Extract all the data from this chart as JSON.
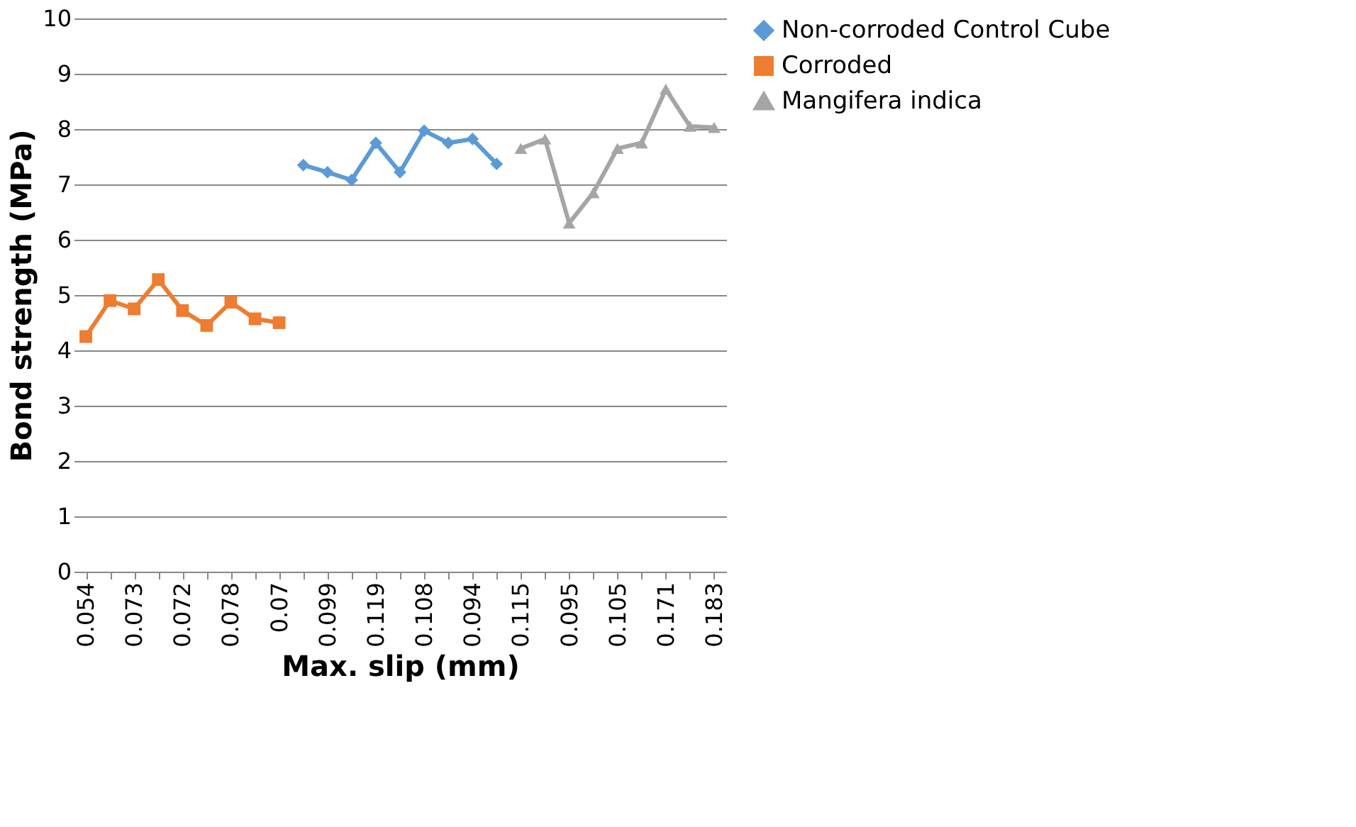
{
  "chart_data": {
    "type": "line",
    "xlabel": "Max. slip (mm)",
    "ylabel": "Bond strength (MPa)",
    "categories": [
      "0.054",
      null,
      "0.073",
      null,
      "0.072",
      null,
      "0.078",
      null,
      "0.07",
      null,
      "0.099",
      null,
      "0.119",
      null,
      "0.108",
      null,
      "0.094",
      null,
      "0.115",
      null,
      "0.095",
      null,
      "0.105",
      null,
      "0.171",
      null,
      "0.183"
    ],
    "series": [
      {
        "name": "Non-corroded Control Cube",
        "color": "#5b9bd5",
        "marker": "diamond",
        "values": [
          null,
          null,
          null,
          null,
          null,
          null,
          null,
          null,
          null,
          7.35,
          7.22,
          7.08,
          7.75,
          7.22,
          7.97,
          7.75,
          7.82,
          7.37,
          null,
          null,
          null,
          null,
          null,
          null,
          null,
          null,
          null
        ]
      },
      {
        "name": "Corroded",
        "color": "#ed7d31",
        "marker": "square",
        "values": [
          4.25,
          4.9,
          4.75,
          5.28,
          4.72,
          4.45,
          4.87,
          4.57,
          4.5,
          null,
          null,
          null,
          null,
          null,
          null,
          null,
          null,
          null,
          null,
          null,
          null,
          null,
          null,
          null,
          null,
          null,
          null
        ]
      },
      {
        "name": "Mangifera indica",
        "color": "#a5a5a5",
        "marker": "triangle",
        "values": [
          null,
          null,
          null,
          null,
          null,
          null,
          null,
          null,
          null,
          null,
          null,
          null,
          null,
          null,
          null,
          null,
          null,
          null,
          7.65,
          7.82,
          6.3,
          6.85,
          7.65,
          7.75,
          8.72,
          8.05,
          8.03
        ]
      }
    ],
    "ylim": [
      0,
      10
    ],
    "yticks": [
      0,
      1,
      2,
      3,
      4,
      5,
      6,
      7,
      8,
      9,
      10
    ],
    "grid": "y",
    "legend": "right",
    "line_style": "solid"
  }
}
